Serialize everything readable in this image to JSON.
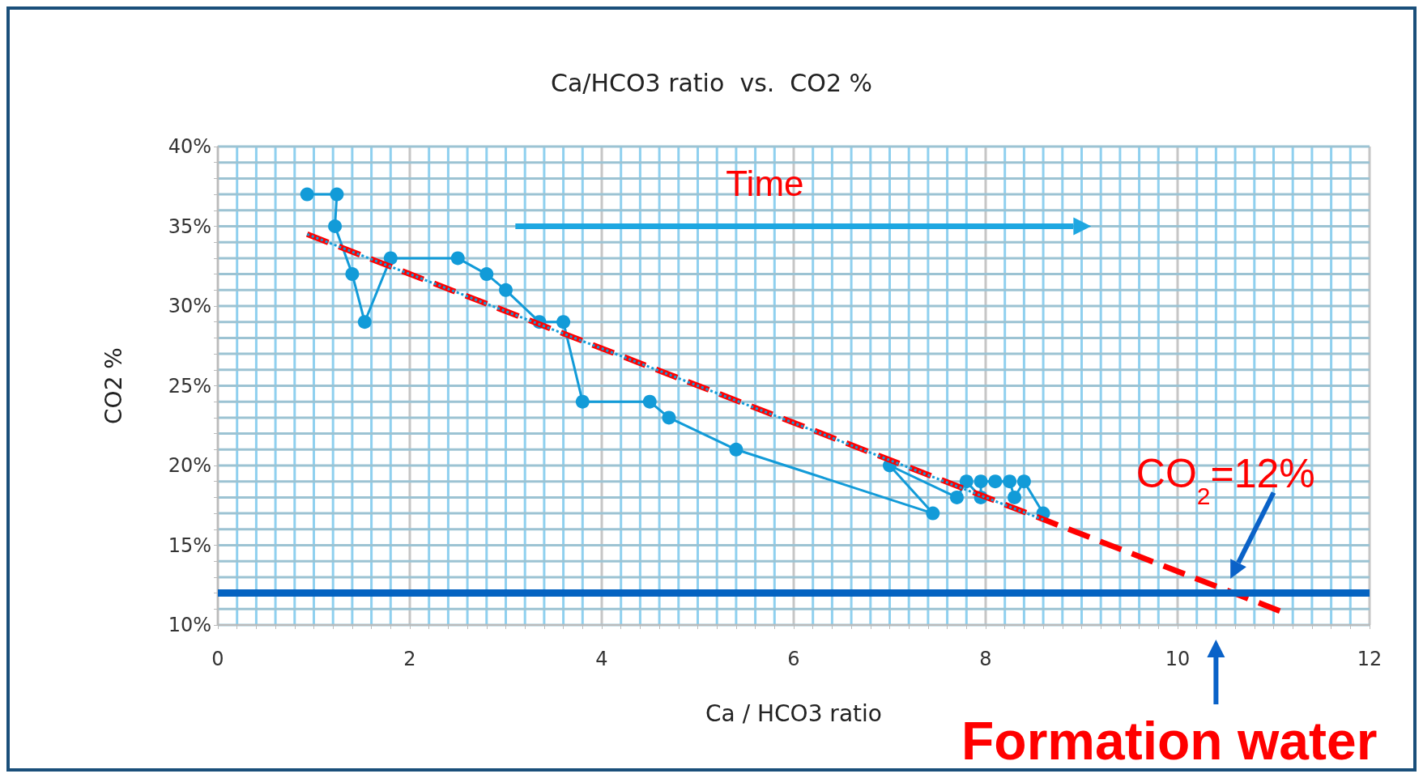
{
  "chart_data": {
    "type": "line",
    "title": "Ca/HCO3 ratio  vs.  CO2 %",
    "xlabel": "Ca / HCO3 ratio",
    "ylabel": "CO2 %",
    "series": [
      {
        "color": "#129bd8",
        "marker": "circle",
        "line_style": "solid",
        "x": [
          0.93,
          1.24,
          1.22,
          1.4,
          1.53,
          1.8,
          2.5,
          2.8,
          3.0,
          3.35,
          3.6,
          3.8,
          4.5,
          4.7,
          5.4,
          7.45,
          7.0,
          7.7,
          7.8,
          7.95,
          7.95,
          8.1,
          8.25,
          8.3,
          8.4,
          8.6
        ],
        "values": [
          37,
          37,
          35,
          32,
          29,
          33,
          33,
          32,
          31,
          29,
          29,
          24,
          24,
          23,
          21,
          17,
          20,
          18,
          19,
          18,
          19,
          19,
          19,
          18,
          19,
          17
        ]
      },
      {
        "color": "#129bd8",
        "marker": "none",
        "line_style": "dotted",
        "x": [
          0.93,
          8.6
        ],
        "values": [
          34.5,
          16.6
        ]
      },
      {
        "color": "#ff0000",
        "marker": "none",
        "line_style": "dashed",
        "x": [
          0.93,
          11.1
        ],
        "values": [
          34.5,
          10.8
        ]
      }
    ],
    "xlim": [
      0,
      12
    ],
    "xticks": [
      0,
      {
        "value": 0.2,
        "label": null
      },
      {
        "value": 0.4,
        "label": null
      },
      {
        "value": 0.6,
        "label": null
      },
      {
        "value": 0.8,
        "label": null
      },
      {
        "value": 1,
        "label": null
      },
      {
        "value": 1.2,
        "label": null
      },
      {
        "value": 1.4,
        "label": null
      },
      {
        "value": 1.6,
        "label": null
      },
      {
        "value": 1.8,
        "label": null
      },
      2,
      {
        "value": 2.2,
        "label": null
      },
      {
        "value": 2.4,
        "label": null
      },
      {
        "value": 2.6,
        "label": null
      },
      {
        "value": 2.8,
        "label": null
      },
      {
        "value": 3,
        "label": null
      },
      {
        "value": 3.2,
        "label": null
      },
      {
        "value": 3.4,
        "label": null
      },
      {
        "value": 3.6,
        "label": null
      },
      {
        "value": 3.8,
        "label": null
      },
      4,
      {
        "value": 4.2,
        "label": null
      },
      {
        "value": 4.4,
        "label": null
      },
      {
        "value": 4.6,
        "label": null
      },
      {
        "value": 4.8,
        "label": null
      },
      {
        "value": 5,
        "label": null
      },
      {
        "value": 5.2,
        "label": null
      },
      {
        "value": 5.4,
        "label": null
      },
      {
        "value": 5.6,
        "label": null
      },
      {
        "value": 5.8,
        "label": null
      },
      6,
      {
        "value": 6.2,
        "label": null
      },
      {
        "value": 6.4,
        "label": null
      },
      {
        "value": 6.6,
        "label": null
      },
      {
        "value": 6.8,
        "label": null
      },
      {
        "value": 7,
        "label": null
      },
      {
        "value": 7.2,
        "label": null
      },
      {
        "value": 7.4,
        "label": null
      },
      {
        "value": 7.6,
        "label": null
      },
      {
        "value": 7.8,
        "label": null
      },
      8,
      {
        "value": 8.2,
        "label": null
      },
      {
        "value": 8.4,
        "label": null
      },
      {
        "value": 8.6,
        "label": null
      },
      {
        "value": 8.8,
        "label": null
      },
      {
        "value": 9,
        "label": null
      },
      {
        "value": 9.2,
        "label": null
      },
      {
        "value": 9.4,
        "label": null
      },
      {
        "value": 9.6,
        "label": null
      },
      {
        "value": 9.8,
        "label": null
      },
      10,
      {
        "value": 10.2,
        "label": null
      },
      {
        "value": 10.4,
        "label": null
      },
      {
        "value": 10.6,
        "label": null
      },
      {
        "value": 10.8,
        "label": null
      },
      {
        "value": 11,
        "label": null
      },
      {
        "value": 11.2,
        "label": null
      },
      {
        "value": 11.4,
        "label": null
      },
      {
        "value": 11.6,
        "label": null
      },
      {
        "value": 11.8,
        "label": null
      },
      12
    ],
    "ylim": [
      10,
      40
    ],
    "yticks": [
      {
        "value": 10,
        "label": "10%"
      },
      {
        "value": 11,
        "label": null
      },
      {
        "value": 12,
        "label": null
      },
      {
        "value": 13,
        "label": null
      },
      {
        "value": 14,
        "label": null
      },
      {
        "value": 15,
        "label": "15%"
      },
      {
        "value": 16,
        "label": null
      },
      {
        "value": 17,
        "label": null
      },
      {
        "value": 18,
        "label": null
      },
      {
        "value": 19,
        "label": null
      },
      {
        "value": 20,
        "label": "20%"
      },
      {
        "value": 21,
        "label": null
      },
      {
        "value": 22,
        "label": null
      },
      {
        "value": 23,
        "label": null
      },
      {
        "value": 24,
        "label": null
      },
      {
        "value": 25,
        "label": "25%"
      },
      {
        "value": 26,
        "label": null
      },
      {
        "value": 27,
        "label": null
      },
      {
        "value": 28,
        "label": null
      },
      {
        "value": 29,
        "label": null
      },
      {
        "value": 30,
        "label": "30%"
      },
      {
        "value": 31,
        "label": null
      },
      {
        "value": 32,
        "label": null
      },
      {
        "value": 33,
        "label": null
      },
      {
        "value": 34,
        "label": null
      },
      {
        "value": 35,
        "label": "35%"
      },
      {
        "value": 36,
        "label": null
      },
      {
        "value": 37,
        "label": null
      },
      {
        "value": 38,
        "label": null
      },
      {
        "value": 39,
        "label": null
      },
      {
        "value": 40,
        "label": "40%"
      }
    ],
    "ref_lines": [
      {
        "axis": "y",
        "value": 12,
        "label": "CO$_{2}$=12%",
        "color": "#0563c1"
      }
    ],
    "annotations": [
      "Time",
      "Formation water"
    ],
    "grid": true
  }
}
